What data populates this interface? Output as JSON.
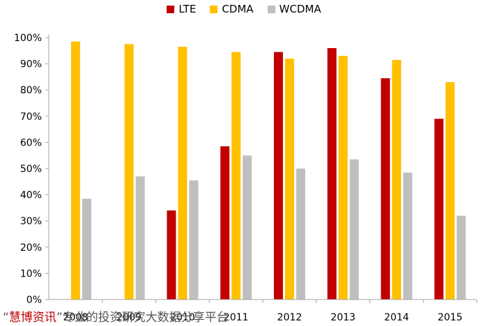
{
  "chart_data": {
    "type": "bar",
    "title": "",
    "xlabel": "",
    "ylabel": "",
    "ylim": [
      0,
      100
    ],
    "yticks": [
      "0%",
      "10%",
      "20%",
      "30%",
      "40%",
      "50%",
      "60%",
      "70%",
      "80%",
      "90%",
      "100%"
    ],
    "categories": [
      "2008",
      "2009",
      "2010",
      "2011",
      "2012",
      "2013",
      "2014",
      "2015"
    ],
    "series": [
      {
        "name": "LTE",
        "color": "#c00000",
        "values": [
          null,
          null,
          34,
          58.5,
          94.5,
          96,
          84.5,
          69
        ]
      },
      {
        "name": "CDMA",
        "color": "#ffc000",
        "values": [
          98.5,
          97.5,
          96.5,
          94.5,
          92,
          93,
          91.5,
          83
        ]
      },
      {
        "name": "WCDMA",
        "color": "#bfbfbf",
        "values": [
          38.5,
          47,
          45.5,
          55,
          50,
          53.5,
          48.5,
          32
        ]
      }
    ],
    "legend_position": "top-center",
    "grid": false
  },
  "watermark": {
    "open_quote": "“",
    "brand": "慧博资讯",
    "rest": "”专业的投资研究大数据分享平台"
  }
}
